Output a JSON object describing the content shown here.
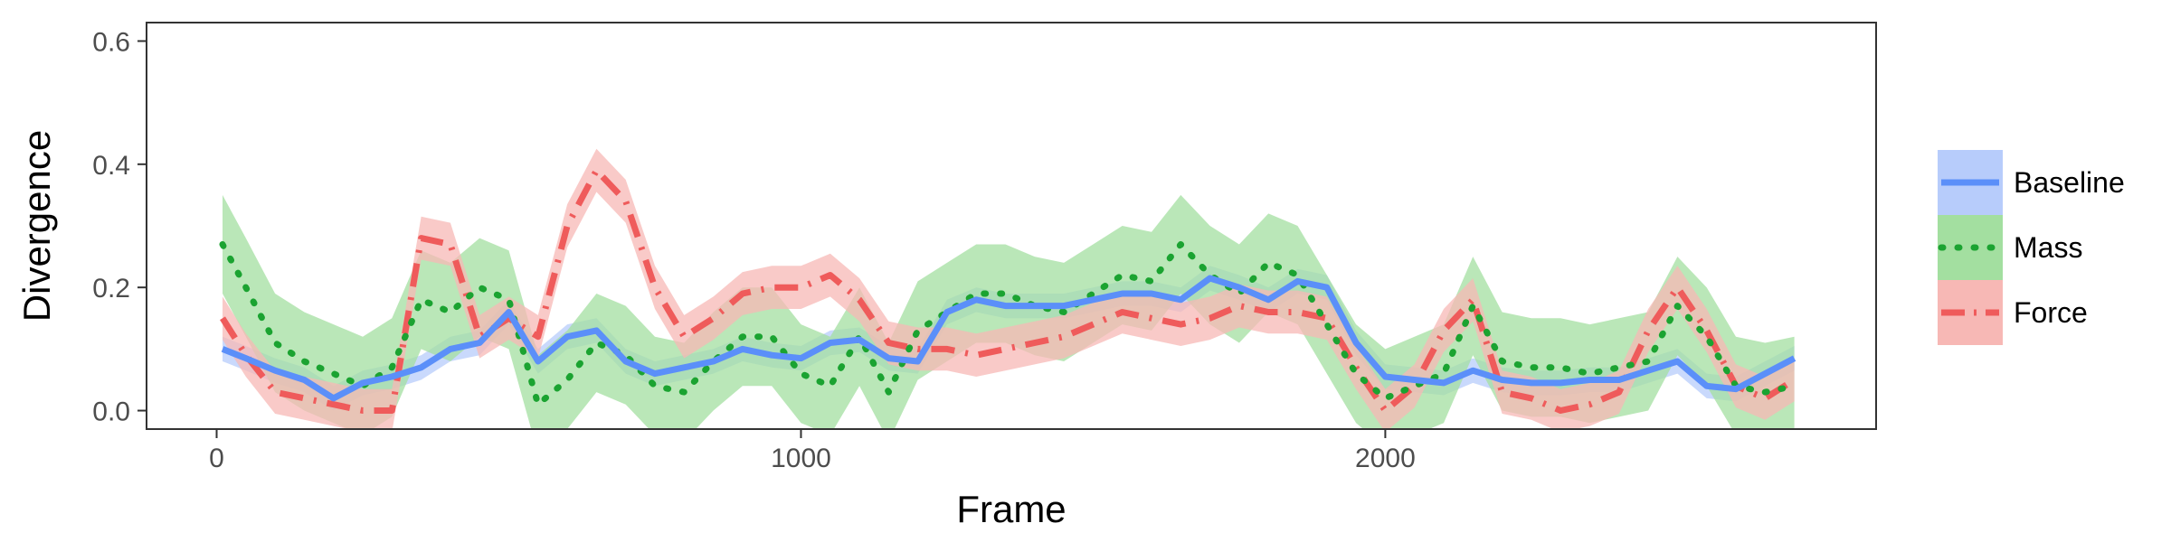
{
  "chart_data": {
    "type": "line",
    "xlabel": "Frame",
    "ylabel": "Divergence",
    "xlim": [
      -120,
      2840
    ],
    "ylim": [
      -0.03,
      0.63
    ],
    "xticks": [
      0,
      1000,
      2000
    ],
    "xtick_labels": [
      "0",
      "1000",
      "2000"
    ],
    "yticks": [
      0.0,
      0.2,
      0.4,
      0.6
    ],
    "ytick_labels": [
      "0.0",
      "0.2",
      "0.4",
      "0.6"
    ],
    "grid": false,
    "legend_position": "right",
    "series": [
      {
        "name": "Baseline",
        "color": "#5B8FF9",
        "band_color": "#B7CCFB",
        "line_style": "solid",
        "points": [
          [
            10,
            0.1
          ],
          [
            50,
            0.085
          ],
          [
            100,
            0.065
          ],
          [
            150,
            0.05
          ],
          [
            200,
            0.02
          ],
          [
            250,
            0.045
          ],
          [
            300,
            0.055
          ],
          [
            350,
            0.07
          ],
          [
            400,
            0.1
          ],
          [
            450,
            0.11
          ],
          [
            500,
            0.16
          ],
          [
            550,
            0.08
          ],
          [
            600,
            0.12
          ],
          [
            650,
            0.13
          ],
          [
            700,
            0.08
          ],
          [
            750,
            0.06
          ],
          [
            800,
            0.07
          ],
          [
            850,
            0.08
          ],
          [
            900,
            0.1
          ],
          [
            950,
            0.09
          ],
          [
            1000,
            0.085
          ],
          [
            1050,
            0.11
          ],
          [
            1100,
            0.115
          ],
          [
            1150,
            0.085
          ],
          [
            1200,
            0.08
          ],
          [
            1250,
            0.16
          ],
          [
            1300,
            0.18
          ],
          [
            1350,
            0.17
          ],
          [
            1400,
            0.17
          ],
          [
            1450,
            0.17
          ],
          [
            1500,
            0.18
          ],
          [
            1550,
            0.19
          ],
          [
            1600,
            0.19
          ],
          [
            1650,
            0.18
          ],
          [
            1700,
            0.215
          ],
          [
            1750,
            0.2
          ],
          [
            1800,
            0.18
          ],
          [
            1850,
            0.21
          ],
          [
            1900,
            0.2
          ],
          [
            1950,
            0.11
          ],
          [
            2000,
            0.055
          ],
          [
            2050,
            0.05
          ],
          [
            2100,
            0.045
          ],
          [
            2150,
            0.065
          ],
          [
            2200,
            0.05
          ],
          [
            2250,
            0.045
          ],
          [
            2300,
            0.045
          ],
          [
            2350,
            0.05
          ],
          [
            2400,
            0.05
          ],
          [
            2450,
            0.065
          ],
          [
            2500,
            0.08
          ],
          [
            2550,
            0.04
          ],
          [
            2600,
            0.035
          ],
          [
            2650,
            0.06
          ],
          [
            2700,
            0.085
          ]
        ],
        "band_halfwidth": 0.02
      },
      {
        "name": "Mass",
        "color": "#1BA331",
        "band_color": "#A3DFA0",
        "line_style": "dotted",
        "points": [
          [
            10,
            0.27
          ],
          [
            50,
            0.2
          ],
          [
            100,
            0.11
          ],
          [
            150,
            0.08
          ],
          [
            200,
            0.06
          ],
          [
            250,
            0.04
          ],
          [
            300,
            0.07
          ],
          [
            350,
            0.18
          ],
          [
            400,
            0.16
          ],
          [
            450,
            0.2
          ],
          [
            500,
            0.18
          ],
          [
            550,
            0.01
          ],
          [
            600,
            0.05
          ],
          [
            650,
            0.11
          ],
          [
            700,
            0.09
          ],
          [
            750,
            0.04
          ],
          [
            800,
            0.03
          ],
          [
            850,
            0.08
          ],
          [
            900,
            0.12
          ],
          [
            950,
            0.12
          ],
          [
            1000,
            0.06
          ],
          [
            1050,
            0.04
          ],
          [
            1100,
            0.12
          ],
          [
            1150,
            0.03
          ],
          [
            1200,
            0.13
          ],
          [
            1250,
            0.16
          ],
          [
            1300,
            0.19
          ],
          [
            1350,
            0.19
          ],
          [
            1400,
            0.17
          ],
          [
            1450,
            0.16
          ],
          [
            1500,
            0.19
          ],
          [
            1550,
            0.22
          ],
          [
            1600,
            0.21
          ],
          [
            1650,
            0.27
          ],
          [
            1700,
            0.22
          ],
          [
            1750,
            0.19
          ],
          [
            1800,
            0.24
          ],
          [
            1850,
            0.22
          ],
          [
            1900,
            0.14
          ],
          [
            1950,
            0.06
          ],
          [
            2000,
            0.02
          ],
          [
            2050,
            0.04
          ],
          [
            2100,
            0.06
          ],
          [
            2150,
            0.17
          ],
          [
            2200,
            0.08
          ],
          [
            2250,
            0.07
          ],
          [
            2300,
            0.07
          ],
          [
            2350,
            0.06
          ],
          [
            2400,
            0.07
          ],
          [
            2450,
            0.08
          ],
          [
            2500,
            0.17
          ],
          [
            2550,
            0.12
          ],
          [
            2600,
            0.04
          ],
          [
            2650,
            0.03
          ],
          [
            2700,
            0.04
          ]
        ],
        "band_halfwidth": 0.08
      },
      {
        "name": "Force",
        "color": "#EF5B5B",
        "band_color": "#F7B8B5",
        "line_style": "dashdot",
        "points": [
          [
            10,
            0.15
          ],
          [
            50,
            0.09
          ],
          [
            100,
            0.03
          ],
          [
            150,
            0.02
          ],
          [
            200,
            0.01
          ],
          [
            250,
            0.0
          ],
          [
            300,
            0.0
          ],
          [
            350,
            0.28
          ],
          [
            400,
            0.27
          ],
          [
            450,
            0.12
          ],
          [
            500,
            0.15
          ],
          [
            550,
            0.12
          ],
          [
            600,
            0.3
          ],
          [
            650,
            0.39
          ],
          [
            700,
            0.34
          ],
          [
            750,
            0.2
          ],
          [
            800,
            0.12
          ],
          [
            850,
            0.15
          ],
          [
            900,
            0.19
          ],
          [
            950,
            0.2
          ],
          [
            1000,
            0.2
          ],
          [
            1050,
            0.22
          ],
          [
            1100,
            0.18
          ],
          [
            1150,
            0.11
          ],
          [
            1200,
            0.1
          ],
          [
            1250,
            0.1
          ],
          [
            1300,
            0.09
          ],
          [
            1350,
            0.1
          ],
          [
            1400,
            0.11
          ],
          [
            1450,
            0.12
          ],
          [
            1500,
            0.14
          ],
          [
            1550,
            0.16
          ],
          [
            1600,
            0.15
          ],
          [
            1650,
            0.14
          ],
          [
            1700,
            0.15
          ],
          [
            1750,
            0.17
          ],
          [
            1800,
            0.16
          ],
          [
            1850,
            0.16
          ],
          [
            1900,
            0.15
          ],
          [
            1950,
            0.07
          ],
          [
            2000,
            0.0
          ],
          [
            2050,
            0.04
          ],
          [
            2100,
            0.13
          ],
          [
            2150,
            0.18
          ],
          [
            2200,
            0.03
          ],
          [
            2250,
            0.02
          ],
          [
            2300,
            0.0
          ],
          [
            2350,
            0.01
          ],
          [
            2400,
            0.03
          ],
          [
            2450,
            0.13
          ],
          [
            2500,
            0.2
          ],
          [
            2550,
            0.13
          ],
          [
            2600,
            0.04
          ],
          [
            2650,
            0.02
          ],
          [
            2700,
            0.05
          ]
        ],
        "band_halfwidth": 0.035
      }
    ]
  }
}
